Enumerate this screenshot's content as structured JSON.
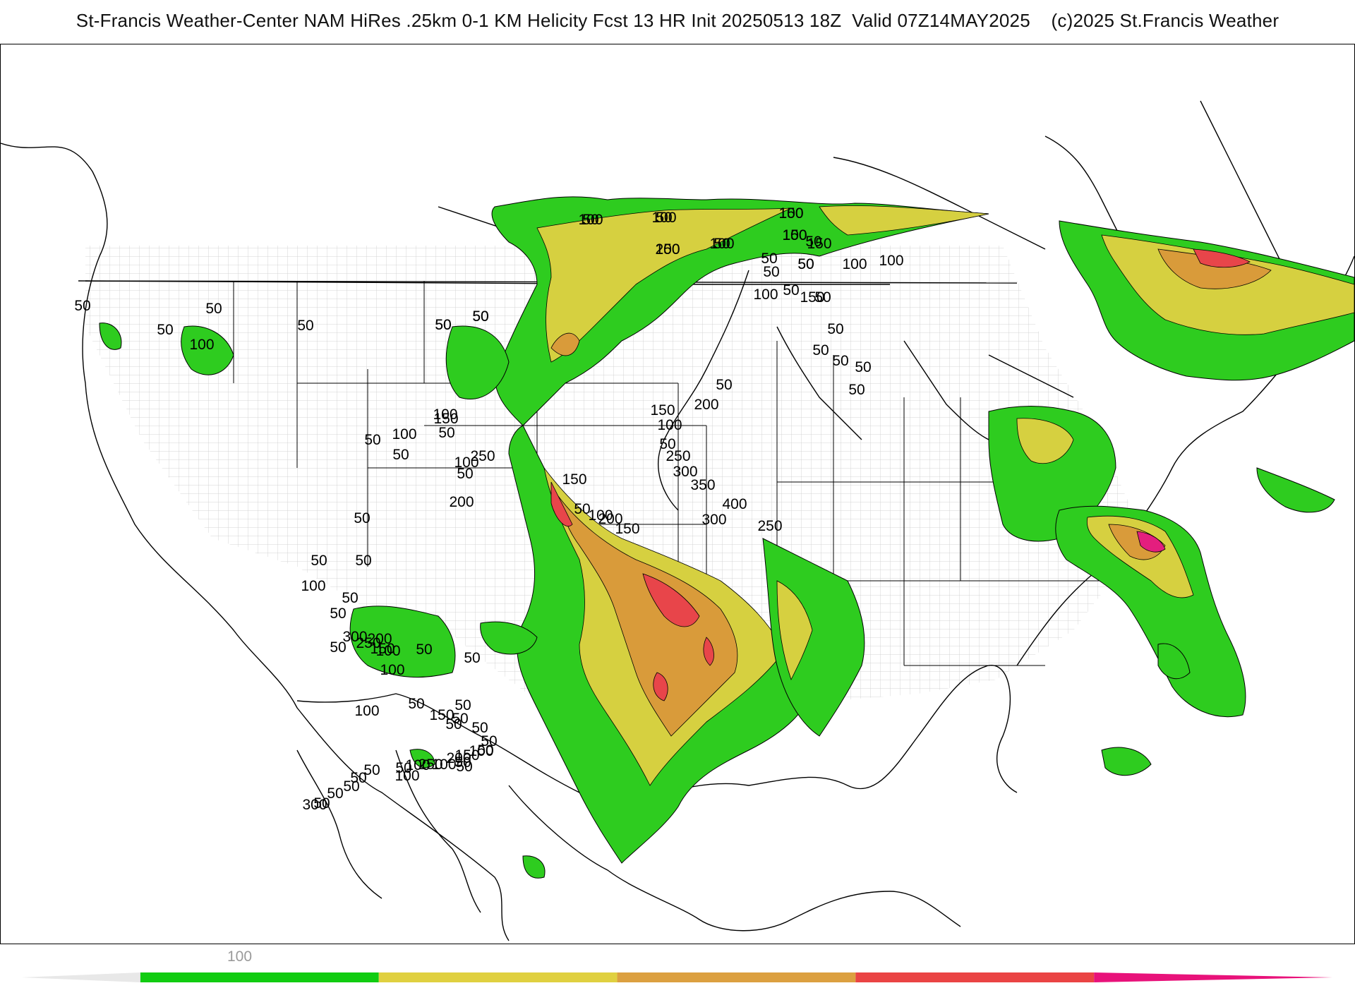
{
  "header": {
    "title": "St-Francis Weather-Center NAM HiRes .25km 0-1 KM Helicity Fcst 13 HR Init 20250513 18Z  Valid 07Z14MAY2025    (c)2025 St.Francis Weather"
  },
  "colors": {
    "level_50": "#2ecc1f",
    "level_150": "#d6d040",
    "level_250": "#d99b3a",
    "level_350": "#e8454a",
    "level_450": "#e41e7e",
    "outline": "#000000",
    "county_lines": "#bdbdbd"
  },
  "colorbar": {
    "tick_label": "100",
    "segments": [
      {
        "color": "#e8e8e8",
        "from": 0,
        "to": 50
      },
      {
        "color": "#11cc11",
        "from": 50,
        "to": 150
      },
      {
        "color": "#e0d040",
        "from": 150,
        "to": 250
      },
      {
        "color": "#dca040",
        "from": 250,
        "to": 350
      },
      {
        "color": "#ea4444",
        "from": 350,
        "to": 450
      },
      {
        "color": "#e8127a",
        "from": 450,
        "to": 550
      }
    ]
  },
  "contour_labels": [
    "50",
    "100",
    "200",
    "150",
    "50",
    "150",
    "100",
    "50",
    "50",
    "50",
    "50",
    "50",
    "50",
    "100",
    "50",
    "50",
    "100",
    "50",
    "150",
    "150",
    "100",
    "50",
    "100",
    "50",
    "50",
    "50",
    "50",
    "50",
    "50",
    "50",
    "200",
    "150",
    "100",
    "50",
    "250",
    "300",
    "350",
    "400",
    "300",
    "250",
    "100",
    "200",
    "150",
    "50",
    "150",
    "100",
    "50",
    "200",
    "250",
    "150",
    "100",
    "50",
    "100",
    "50",
    "50",
    "50",
    "50",
    "50",
    "100",
    "50",
    "50",
    "50",
    "300",
    "250",
    "200",
    "150",
    "100",
    "50",
    "50",
    "100",
    "50",
    "100",
    "150",
    "50",
    "50",
    "50",
    "50",
    "50",
    "50",
    "100",
    "150",
    "200",
    "50",
    "50",
    "100",
    "250",
    "50",
    "100",
    "100",
    "50",
    "50",
    "50",
    "50",
    "50",
    "300",
    "100",
    "50",
    "150",
    "100",
    "50",
    "100",
    "50",
    "50",
    "50"
  ]
}
